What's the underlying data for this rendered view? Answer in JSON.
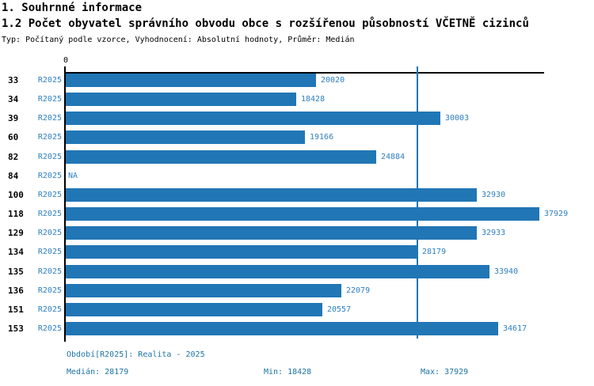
{
  "header": {
    "title": "1. Souhrnné informace",
    "subtitle": "1.2 Počet obyvatel správního obvodu obce s rozšířenou působností VČETNĚ cizinců",
    "meta": "Typ: Počítaný podle vzorce, Vyhodnocení: Absolutní hodnoty, Průměr: Medián"
  },
  "chart_data": {
    "type": "bar",
    "orientation": "horizontal",
    "title": "1.2 Počet obyvatel správního obvodu obce s rozšířenou působností VČETNĚ cizinců",
    "axis_origin_label": "0",
    "series_label": "R2025",
    "categories": [
      "33",
      "34",
      "39",
      "60",
      "82",
      "84",
      "100",
      "118",
      "129",
      "134",
      "135",
      "136",
      "151",
      "153"
    ],
    "values": [
      20020,
      18428,
      30003,
      19166,
      24884,
      null,
      32930,
      37929,
      32933,
      28179,
      33940,
      22079,
      20557,
      34617
    ],
    "na_label": "NA",
    "median_value": 28179,
    "min_value": 18428,
    "max_value": 37929,
    "xlim": [
      0,
      38350
    ],
    "grid": false,
    "legend_position": "none",
    "bar_color": "#2176b5",
    "median_line_color": "#2176b5",
    "label_color": "#2e80c1"
  },
  "footer": {
    "period": "Období[R2025]: Realita - 2025",
    "median": "Medián: 28179",
    "min": "Min: 18428",
    "max": "Max: 37929",
    "color": "#1a74a4"
  }
}
